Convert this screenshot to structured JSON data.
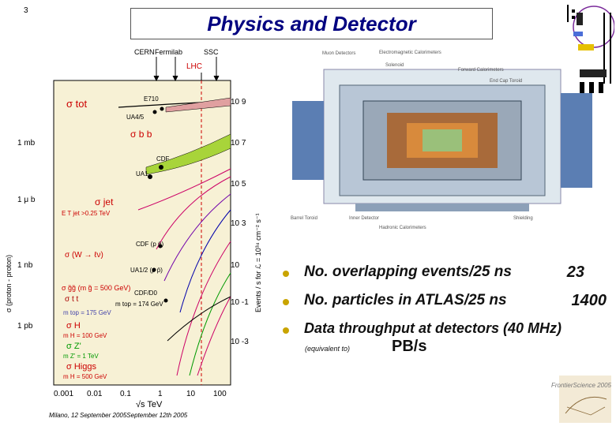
{
  "slide": {
    "number": "3",
    "title": "Physics and Detector",
    "footer": "Milano, 12 September 2005September 12th 2005"
  },
  "plot": {
    "top_labels": [
      "CERN",
      "Fermilab",
      "SSC"
    ],
    "lhc_label": "LHC",
    "left_ticks": [
      "1 mb",
      "1 μ b",
      "1 nb",
      "1 pb"
    ],
    "right_ticks": [
      "10 9",
      "10 7",
      "10 5",
      "10 3",
      "10",
      "10 -1",
      "10 -3"
    ],
    "x_ticks": [
      "0.001",
      "0.01",
      "0.1",
      "1",
      "10",
      "100"
    ],
    "x_label": "√s  TeV",
    "y_label_left": "σ (proton - proton)",
    "y_label_right": "Events / s  for ℒ = 10³⁴ cm⁻² s⁻¹",
    "curve_labels": {
      "tot": "σ tot",
      "bb": "σ b b",
      "jet": "σ jet",
      "jet_cut": "E T jet >0.25 TeV",
      "w": "σ (W → ℓν)",
      "gg": "σ g̃g̃ (m g̃ = 500 GeV)",
      "tt": "σ t t",
      "mtop_a": "m top = 174 GeV",
      "mtop_b": "m top = 175 GeV",
      "h100": "σ H",
      "h100_mass": "m H = 100 GeV",
      "z": "σ Z'",
      "z_mass": "m Z' = 1 TeV",
      "higgs": "σ Higgs",
      "higgs_mass": "m H = 500 GeV"
    },
    "experiment_labels": [
      "E710",
      "UA4/5",
      "CDF",
      "UA1",
      "CDF (p p̄)",
      "UA1/2 (p p̄)",
      "CDF/D0"
    ]
  },
  "detector_labels": [
    "Muon Detectors",
    "Electromagnetic Calorimeters",
    "Solenoid",
    "Forward Calorimeters",
    "End Cap Toroid",
    "Barrel Toroid",
    "Inner Detector",
    "Hadronic Calorimeters",
    "Shielding"
  ],
  "bullets": [
    {
      "text": "No. overlapping events/25 ns",
      "value": "23"
    },
    {
      "text": "No. particles in ATLAS/25 ns",
      "value": "1400"
    },
    {
      "text": "Data throughput at detectors (40 MHz)",
      "value": ""
    }
  ],
  "note_small": "(equivalent to)",
  "note_pb": "PB/s",
  "frontier": "FrontierScience 2005",
  "colors": {
    "title": "#000080",
    "bullet": "#c9a400",
    "plot_bg": "#f7f1d5",
    "lhc": "#cc0000"
  }
}
